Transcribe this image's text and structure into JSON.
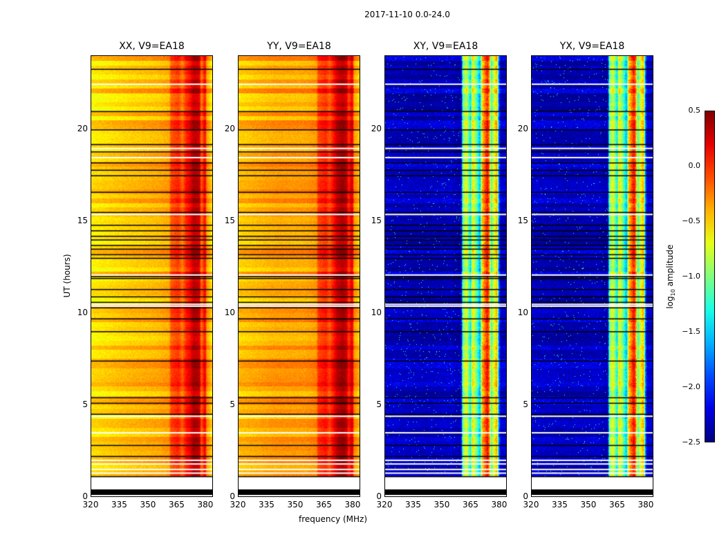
{
  "chart_data": {
    "type": "heatmap",
    "title": "2017-11-10 0.0-24.0",
    "xlabel": "frequency (MHz)",
    "ylabel": "UT (hours)",
    "xlim": [
      320,
      384
    ],
    "ylim": [
      0,
      24
    ],
    "xticks": [
      "320",
      "335",
      "350",
      "365",
      "380"
    ],
    "xtick_values": [
      320,
      335,
      350,
      365,
      380
    ],
    "yticks": [
      "0",
      "5",
      "10",
      "15",
      "20"
    ],
    "ytick_values": [
      0,
      5,
      10,
      15,
      20
    ],
    "colorbar": {
      "label": "log10 amplitude",
      "label_main": "log",
      "label_sub": "10",
      "label_rest": " amplitude",
      "range": [
        -2.5,
        0.5
      ],
      "colormap": "jet",
      "ticks": [
        "0.5",
        "0.0",
        "−0.5",
        "−1.0",
        "−1.5",
        "−2.0",
        "−2.5"
      ],
      "tick_values": [
        0.5,
        0.0,
        -0.5,
        -1.0,
        -1.5,
        -2.0,
        -2.5
      ]
    },
    "panels": [
      {
        "title": "XX, V9=EA18",
        "profile": [
          [
            320,
            -0.55
          ],
          [
            340,
            -0.45
          ],
          [
            355,
            -0.4
          ],
          [
            361,
            -0.35
          ],
          [
            362,
            -0.1
          ],
          [
            366,
            0.0
          ],
          [
            368,
            -0.2
          ],
          [
            370,
            0.05
          ],
          [
            372,
            0.15
          ],
          [
            374,
            0.35
          ],
          [
            377,
            0.3
          ],
          [
            378,
            -0.2
          ],
          [
            380,
            0.15
          ],
          [
            381,
            -0.3
          ],
          [
            384,
            -0.55
          ]
        ]
      },
      {
        "title": "YY, V9=EA18",
        "profile": [
          [
            320,
            -0.45
          ],
          [
            340,
            -0.35
          ],
          [
            355,
            -0.35
          ],
          [
            361,
            -0.3
          ],
          [
            362,
            -0.05
          ],
          [
            366,
            0.05
          ],
          [
            368,
            -0.1
          ],
          [
            370,
            0.1
          ],
          [
            372,
            0.3
          ],
          [
            375,
            0.4
          ],
          [
            377,
            0.3
          ],
          [
            378,
            0.0
          ],
          [
            380,
            0.25
          ],
          [
            381,
            -0.3
          ],
          [
            384,
            -0.45
          ]
        ]
      },
      {
        "title": "XY, V9=EA18",
        "profile": [
          [
            320,
            -2.3
          ],
          [
            340,
            -2.35
          ],
          [
            355,
            -2.3
          ],
          [
            360,
            -2.4
          ],
          [
            361,
            -1.0
          ],
          [
            363,
            -0.7
          ],
          [
            365,
            -1.4
          ],
          [
            366,
            -0.6
          ],
          [
            368,
            -1.0
          ],
          [
            370,
            -1.6
          ],
          [
            371,
            -0.5
          ],
          [
            374,
            0.1
          ],
          [
            375,
            -0.3
          ],
          [
            376,
            -1.2
          ],
          [
            377,
            -0.8
          ],
          [
            379,
            -0.4
          ],
          [
            380,
            -1.8
          ],
          [
            381,
            -2.3
          ],
          [
            384,
            -2.3
          ]
        ]
      },
      {
        "title": "YX, V9=EA18",
        "profile": [
          [
            320,
            -2.3
          ],
          [
            340,
            -2.35
          ],
          [
            355,
            -2.3
          ],
          [
            360,
            -2.4
          ],
          [
            361,
            -1.0
          ],
          [
            363,
            -0.7
          ],
          [
            365,
            -1.4
          ],
          [
            366,
            -0.6
          ],
          [
            368,
            -1.0
          ],
          [
            370,
            -1.6
          ],
          [
            371,
            -0.5
          ],
          [
            374,
            0.1
          ],
          [
            375,
            -0.3
          ],
          [
            376,
            -1.2
          ],
          [
            377,
            -0.8
          ],
          [
            379,
            -0.4
          ],
          [
            380,
            -1.8
          ],
          [
            381,
            -2.3
          ],
          [
            384,
            -2.3
          ]
        ]
      }
    ],
    "flagged_black_hours": [
      23.3,
      21.0,
      20.0,
      19.2,
      18.8,
      18.2,
      17.8,
      17.5,
      16.6,
      15.5,
      14.8,
      14.5,
      14.2,
      14.0,
      13.7,
      13.5,
      13.2,
      13.0,
      12.0,
      11.9,
      11.3,
      10.9,
      10.6,
      10.3,
      9.7,
      9.0,
      7.4,
      5.4,
      5.1,
      4.5,
      2.8,
      2.2,
      1.1
    ],
    "flagged_white_hours": [
      22.5,
      19.0,
      18.5,
      15.4,
      12.1,
      10.5,
      10.4,
      4.4,
      3.5,
      2.0,
      1.8,
      1.5,
      1.3
    ],
    "no_data_hours": [
      0.4,
      1.1
    ],
    "black_band_hours": [
      0.1,
      0.4
    ]
  }
}
